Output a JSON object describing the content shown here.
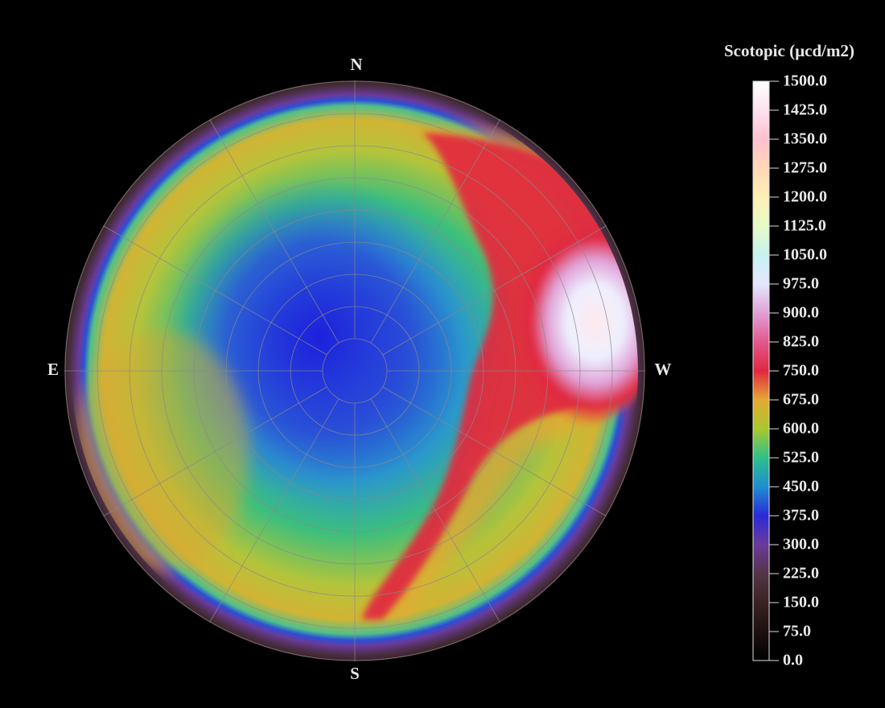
{
  "chart_data": {
    "type": "skymap",
    "colorbar_title": "Scotopic (µcd/m2)",
    "directions": {
      "north": "N",
      "east": "E",
      "south": "S",
      "west": "W"
    },
    "clim": [
      0,
      1500
    ],
    "cticks": [
      {
        "value": 0,
        "label": "0.0"
      },
      {
        "value": 75,
        "label": "75.0"
      },
      {
        "value": 150,
        "label": "150.0"
      },
      {
        "value": 225,
        "label": "225.0"
      },
      {
        "value": 300,
        "label": "300.0"
      },
      {
        "value": 375,
        "label": "375.0"
      },
      {
        "value": 450,
        "label": "450.0"
      },
      {
        "value": 525,
        "label": "525.0"
      },
      {
        "value": 600,
        "label": "600.0"
      },
      {
        "value": 675,
        "label": "675.0"
      },
      {
        "value": 750,
        "label": "750.0"
      },
      {
        "value": 825,
        "label": "825.0"
      },
      {
        "value": 900,
        "label": "900.0"
      },
      {
        "value": 975,
        "label": "975.0"
      },
      {
        "value": 1050,
        "label": "1050.0"
      },
      {
        "value": 1125,
        "label": "1125.0"
      },
      {
        "value": 1200,
        "label": "1200.0"
      },
      {
        "value": 1275,
        "label": "1275.0"
      },
      {
        "value": 1350,
        "label": "1350.0"
      },
      {
        "value": 1425,
        "label": "1425.0"
      },
      {
        "value": 1500,
        "label": "1500.0"
      }
    ],
    "colors": [
      "#000000",
      "#1e1010",
      "#3a2222",
      "#553448",
      "#6a3a9a",
      "#2a2ad8",
      "#1f8ed2",
      "#2fbf8a",
      "#a8c82e",
      "#e6a832",
      "#e02840",
      "#e2588e",
      "#e0a0d6",
      "#e4e8ff",
      "#c6f2f2",
      "#e6fcc6",
      "#fff0b4",
      "#ffd8b4",
      "#ffc0d0",
      "#ffe2f0",
      "#ffffff"
    ]
  }
}
